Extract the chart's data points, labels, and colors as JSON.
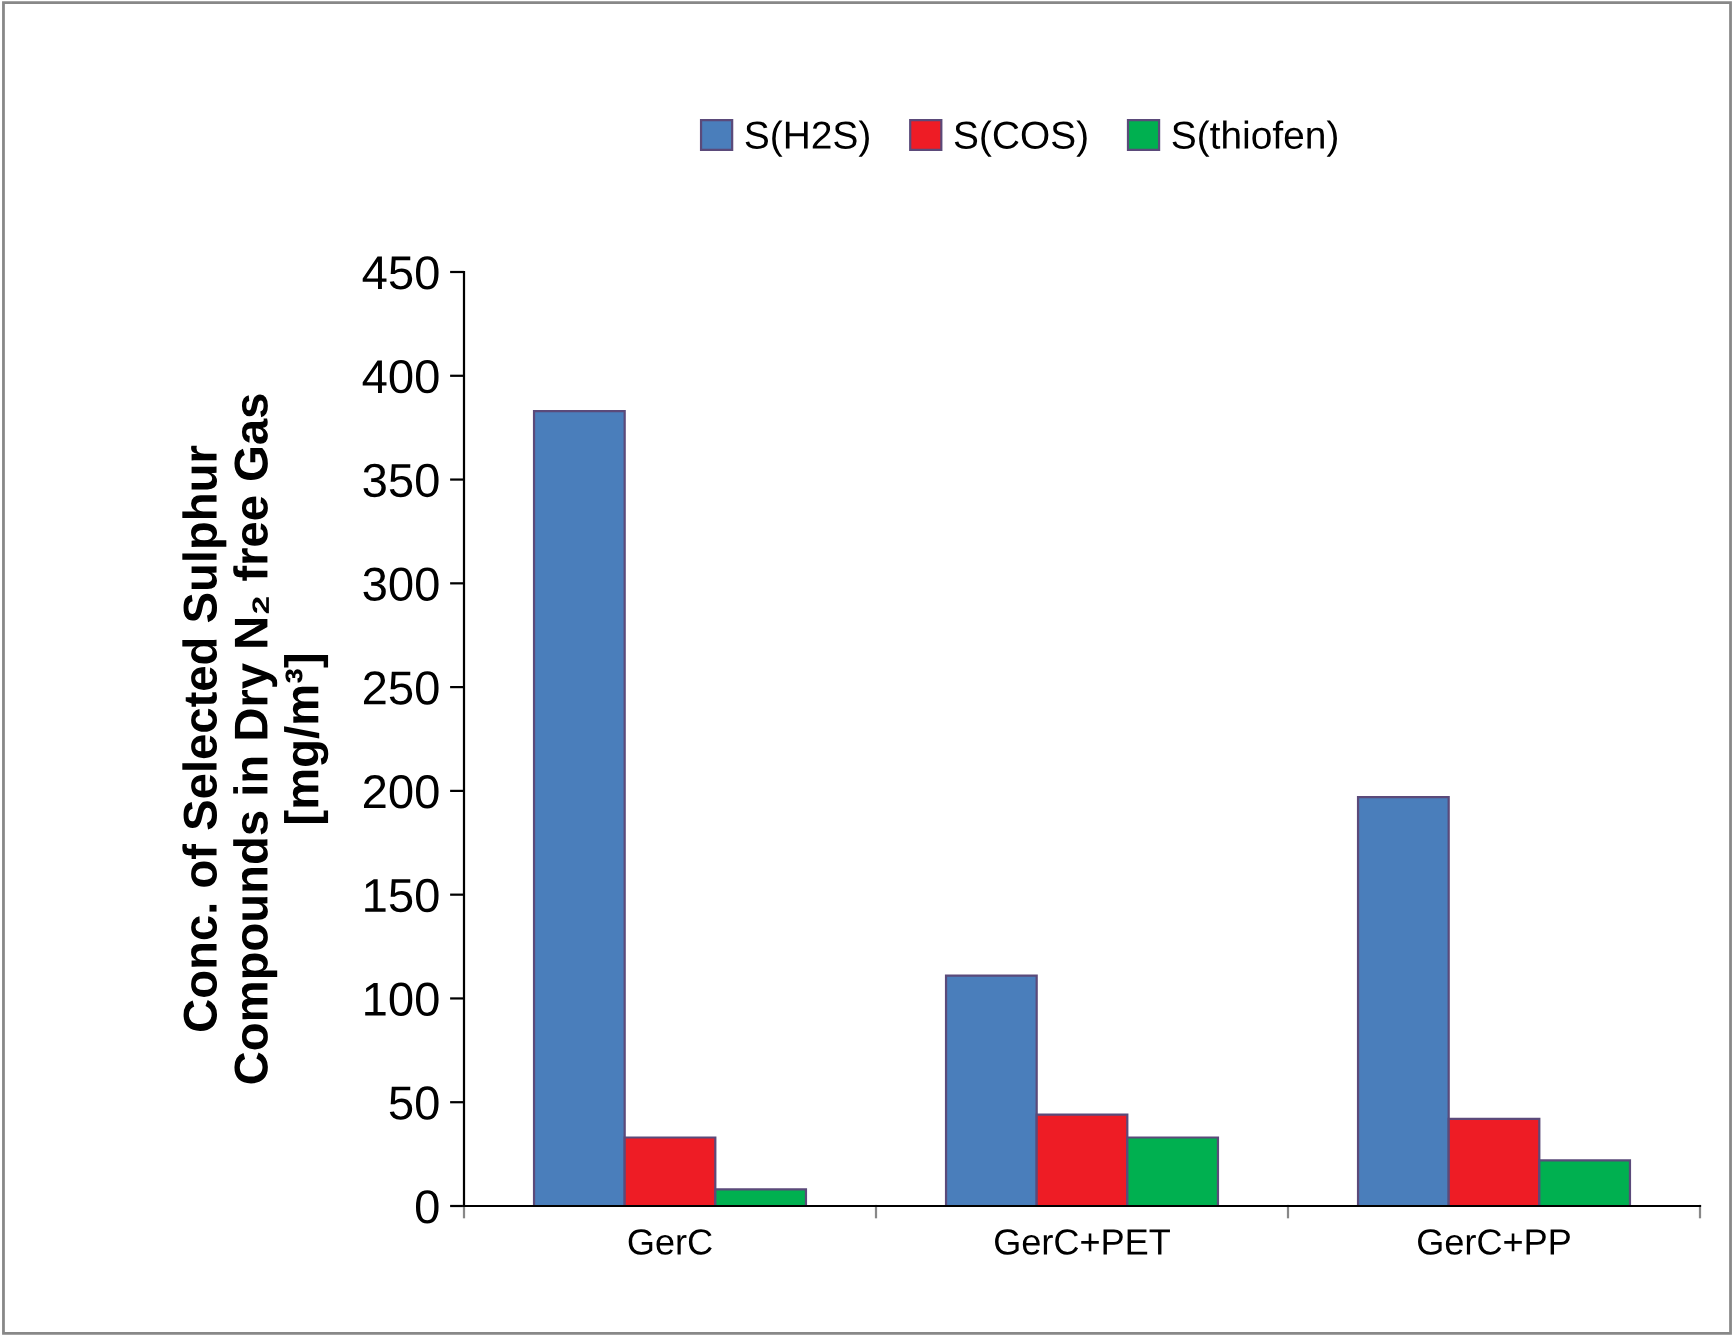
{
  "chart_data": {
    "type": "bar",
    "ylabel": "Conc. of Selected Sulphur\nCompounds in Dry N₂ free Gas\n[mg/m³]",
    "categories": [
      "GerC",
      "GerC+PET",
      "GerC+PP"
    ],
    "series": [
      {
        "name": "S(H2S)",
        "color": "#4a7ebb",
        "values": [
          383,
          111,
          197
        ]
      },
      {
        "name": "S(COS)",
        "color": "#ee1c25",
        "values": [
          33,
          44,
          42
        ]
      },
      {
        "name": "S(thiofen)",
        "color": "#00b050",
        "values": [
          8,
          33,
          22
        ]
      }
    ],
    "ylim": [
      0,
      450
    ],
    "yticks": [
      0,
      50,
      100,
      150,
      200,
      250,
      300,
      350,
      400,
      450
    ],
    "grid": false,
    "legend": "top"
  }
}
